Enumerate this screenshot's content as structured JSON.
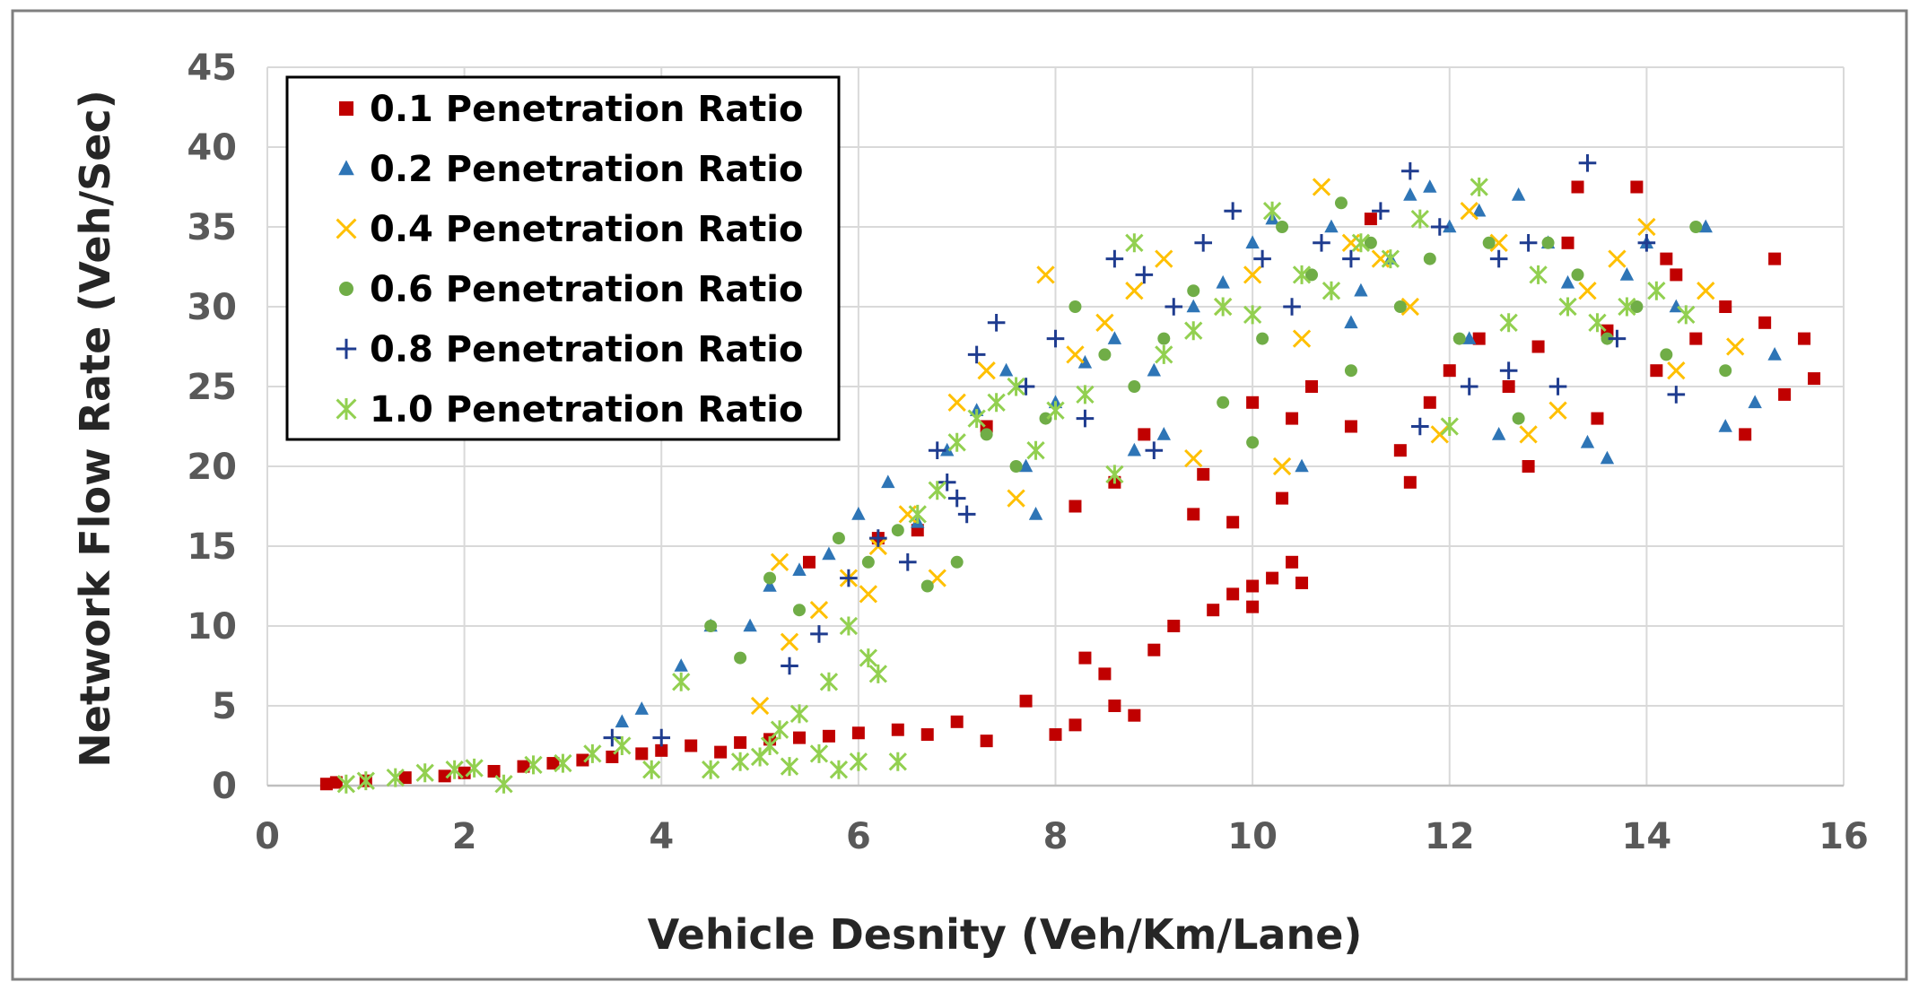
{
  "chart_data": {
    "type": "scatter",
    "title": "",
    "xlabel": "Vehicle Desnity (Veh/Km/Lane)",
    "ylabel": "Network Flow Rate (Veh/Sec)",
    "xlim": [
      0,
      16
    ],
    "ylim": [
      0,
      45
    ],
    "xticks": [
      "0",
      "2",
      "4",
      "6",
      "8",
      "10",
      "12",
      "14",
      "16"
    ],
    "yticks": [
      "0",
      "5",
      "10",
      "15",
      "20",
      "25",
      "30",
      "35",
      "40",
      "45"
    ],
    "grid": true,
    "legend_position": "top-left",
    "series": [
      {
        "name": "0.1 Penetration Ratio",
        "marker": "square",
        "color": "#c00000",
        "points": [
          [
            0.6,
            0.1
          ],
          [
            0.7,
            0.2
          ],
          [
            1.0,
            0.3
          ],
          [
            1.4,
            0.5
          ],
          [
            1.8,
            0.6
          ],
          [
            2.0,
            0.8
          ],
          [
            2.3,
            0.9
          ],
          [
            2.6,
            1.2
          ],
          [
            2.9,
            1.4
          ],
          [
            3.2,
            1.6
          ],
          [
            3.5,
            1.8
          ],
          [
            3.8,
            2.0
          ],
          [
            4.0,
            2.2
          ],
          [
            4.3,
            2.5
          ],
          [
            4.6,
            2.1
          ],
          [
            4.8,
            2.7
          ],
          [
            5.1,
            2.9
          ],
          [
            5.4,
            3.0
          ],
          [
            5.7,
            3.1
          ],
          [
            6.0,
            3.3
          ],
          [
            6.4,
            3.5
          ],
          [
            6.7,
            3.2
          ],
          [
            7.0,
            4.0
          ],
          [
            7.3,
            2.8
          ],
          [
            7.7,
            5.3
          ],
          [
            8.0,
            3.2
          ],
          [
            8.2,
            3.8
          ],
          [
            8.3,
            8.0
          ],
          [
            8.5,
            7.0
          ],
          [
            8.6,
            5.0
          ],
          [
            8.8,
            4.4
          ],
          [
            9.0,
            8.5
          ],
          [
            9.2,
            10.0
          ],
          [
            9.6,
            11.0
          ],
          [
            9.8,
            12.0
          ],
          [
            10.0,
            12.5
          ],
          [
            10.2,
            13.0
          ],
          [
            10.4,
            14.0
          ],
          [
            10.5,
            12.7
          ],
          [
            10.0,
            11.2
          ],
          [
            9.4,
            17.0
          ],
          [
            9.8,
            16.5
          ],
          [
            10.3,
            18.0
          ],
          [
            9.5,
            19.5
          ],
          [
            8.6,
            19.0
          ],
          [
            8.9,
            22.0
          ],
          [
            10.0,
            24.0
          ],
          [
            10.6,
            25.0
          ],
          [
            11.0,
            22.5
          ],
          [
            11.5,
            21.0
          ],
          [
            11.8,
            24.0
          ],
          [
            12.0,
            26.0
          ],
          [
            12.3,
            28.0
          ],
          [
            12.6,
            25.0
          ],
          [
            12.9,
            27.5
          ],
          [
            13.2,
            34.0
          ],
          [
            13.3,
            37.5
          ],
          [
            13.6,
            28.5
          ],
          [
            13.9,
            37.5
          ],
          [
            14.1,
            26.0
          ],
          [
            14.3,
            32.0
          ],
          [
            14.5,
            28.0
          ],
          [
            14.8,
            30.0
          ],
          [
            15.0,
            22.0
          ],
          [
            15.2,
            29.0
          ],
          [
            15.4,
            24.5
          ],
          [
            15.6,
            28.0
          ],
          [
            15.7,
            25.5
          ],
          [
            15.3,
            33.0
          ],
          [
            14.2,
            33.0
          ],
          [
            11.2,
            35.5
          ],
          [
            11.6,
            19.0
          ],
          [
            12.8,
            20.0
          ],
          [
            13.5,
            23.0
          ],
          [
            5.5,
            14.0
          ],
          [
            6.2,
            15.5
          ],
          [
            6.6,
            16.0
          ],
          [
            7.3,
            22.5
          ],
          [
            8.2,
            17.5
          ],
          [
            10.4,
            23.0
          ]
        ]
      },
      {
        "name": "0.2 Penetration Ratio",
        "marker": "triangle",
        "color": "#2e75b6",
        "points": [
          [
            3.6,
            4.0
          ],
          [
            3.8,
            4.8
          ],
          [
            4.2,
            7.5
          ],
          [
            4.5,
            10.0
          ],
          [
            4.9,
            10.0
          ],
          [
            5.1,
            12.5
          ],
          [
            5.4,
            13.5
          ],
          [
            5.7,
            14.5
          ],
          [
            6.0,
            17.0
          ],
          [
            6.3,
            19.0
          ],
          [
            6.6,
            16.5
          ],
          [
            6.9,
            21.0
          ],
          [
            7.2,
            23.5
          ],
          [
            7.5,
            26.0
          ],
          [
            7.8,
            17.0
          ],
          [
            8.0,
            24.0
          ],
          [
            8.3,
            26.5
          ],
          [
            8.6,
            28.0
          ],
          [
            8.8,
            21.0
          ],
          [
            9.1,
            22.0
          ],
          [
            9.4,
            30.0
          ],
          [
            9.7,
            31.5
          ],
          [
            10.0,
            34.0
          ],
          [
            10.2,
            35.5
          ],
          [
            10.5,
            20.0
          ],
          [
            10.8,
            35.0
          ],
          [
            11.1,
            31.0
          ],
          [
            11.4,
            33.0
          ],
          [
            11.6,
            37.0
          ],
          [
            11.8,
            37.5
          ],
          [
            12.0,
            35.0
          ],
          [
            12.3,
            36.0
          ],
          [
            12.5,
            22.0
          ],
          [
            12.7,
            37.0
          ],
          [
            13.0,
            34.0
          ],
          [
            13.2,
            31.5
          ],
          [
            13.4,
            21.5
          ],
          [
            13.6,
            20.5
          ],
          [
            13.8,
            32.0
          ],
          [
            14.0,
            34.0
          ],
          [
            14.3,
            30.0
          ],
          [
            14.6,
            35.0
          ],
          [
            14.8,
            22.5
          ],
          [
            15.1,
            24.0
          ],
          [
            15.3,
            27.0
          ],
          [
            12.2,
            28.0
          ],
          [
            11.0,
            29.0
          ],
          [
            9.0,
            26.0
          ],
          [
            7.7,
            20.0
          ]
        ]
      },
      {
        "name": "0.4 Penetration Ratio",
        "marker": "x",
        "color": "#ffc000",
        "points": [
          [
            5.0,
            5.0
          ],
          [
            5.3,
            9.0
          ],
          [
            5.6,
            11.0
          ],
          [
            5.9,
            13.0
          ],
          [
            6.2,
            15.0
          ],
          [
            6.5,
            17.0
          ],
          [
            6.8,
            13.0
          ],
          [
            7.0,
            24.0
          ],
          [
            7.3,
            26.0
          ],
          [
            7.6,
            18.0
          ],
          [
            7.9,
            32.0
          ],
          [
            8.2,
            27.0
          ],
          [
            8.5,
            29.0
          ],
          [
            8.8,
            31.0
          ],
          [
            9.1,
            33.0
          ],
          [
            9.4,
            20.5
          ],
          [
            9.7,
            30.0
          ],
          [
            10.0,
            32.0
          ],
          [
            10.3,
            20.0
          ],
          [
            10.7,
            37.5
          ],
          [
            11.0,
            34.0
          ],
          [
            11.3,
            33.0
          ],
          [
            11.6,
            30.0
          ],
          [
            11.9,
            22.0
          ],
          [
            12.2,
            36.0
          ],
          [
            12.5,
            34.0
          ],
          [
            12.8,
            22.0
          ],
          [
            13.1,
            23.5
          ],
          [
            13.4,
            31.0
          ],
          [
            13.7,
            33.0
          ],
          [
            14.0,
            35.0
          ],
          [
            14.3,
            26.0
          ],
          [
            14.6,
            31.0
          ],
          [
            14.9,
            27.5
          ],
          [
            5.2,
            14.0
          ],
          [
            6.1,
            12.0
          ],
          [
            10.5,
            28.0
          ]
        ]
      },
      {
        "name": "0.6 Penetration Ratio",
        "marker": "circle",
        "color": "#70ad47",
        "points": [
          [
            4.5,
            10.0
          ],
          [
            4.8,
            8.0
          ],
          [
            5.1,
            13.0
          ],
          [
            5.4,
            11.0
          ],
          [
            5.8,
            15.5
          ],
          [
            6.1,
            14.0
          ],
          [
            6.4,
            16.0
          ],
          [
            6.7,
            12.5
          ],
          [
            7.0,
            14.0
          ],
          [
            7.3,
            22.0
          ],
          [
            7.6,
            20.0
          ],
          [
            7.9,
            23.0
          ],
          [
            8.2,
            30.0
          ],
          [
            8.5,
            27.0
          ],
          [
            8.8,
            25.0
          ],
          [
            9.1,
            28.0
          ],
          [
            9.4,
            31.0
          ],
          [
            9.7,
            24.0
          ],
          [
            10.0,
            21.5
          ],
          [
            10.3,
            35.0
          ],
          [
            10.6,
            32.0
          ],
          [
            10.9,
            36.5
          ],
          [
            11.2,
            34.0
          ],
          [
            11.5,
            30.0
          ],
          [
            11.8,
            33.0
          ],
          [
            12.1,
            28.0
          ],
          [
            12.4,
            34.0
          ],
          [
            12.7,
            23.0
          ],
          [
            13.0,
            34.0
          ],
          [
            13.3,
            32.0
          ],
          [
            13.6,
            28.0
          ],
          [
            13.9,
            30.0
          ],
          [
            14.2,
            27.0
          ],
          [
            14.5,
            35.0
          ],
          [
            14.8,
            26.0
          ],
          [
            10.1,
            28.0
          ],
          [
            11.0,
            26.0
          ]
        ]
      },
      {
        "name": "0.8 Penetration Ratio",
        "marker": "plus",
        "color": "#1f3c8f",
        "points": [
          [
            3.5,
            3.0
          ],
          [
            4.0,
            3.0
          ],
          [
            5.3,
            7.5
          ],
          [
            5.6,
            9.5
          ],
          [
            5.9,
            13.0
          ],
          [
            6.2,
            15.5
          ],
          [
            6.5,
            14.0
          ],
          [
            6.8,
            21.0
          ],
          [
            7.0,
            18.0
          ],
          [
            7.2,
            27.0
          ],
          [
            7.4,
            29.0
          ],
          [
            7.7,
            25.0
          ],
          [
            8.0,
            28.0
          ],
          [
            8.3,
            23.0
          ],
          [
            8.6,
            33.0
          ],
          [
            8.9,
            32.0
          ],
          [
            9.2,
            30.0
          ],
          [
            9.5,
            34.0
          ],
          [
            9.8,
            36.0
          ],
          [
            10.1,
            33.0
          ],
          [
            10.4,
            30.0
          ],
          [
            10.7,
            34.0
          ],
          [
            11.0,
            33.0
          ],
          [
            11.3,
            36.0
          ],
          [
            11.6,
            38.5
          ],
          [
            11.9,
            35.0
          ],
          [
            12.2,
            25.0
          ],
          [
            12.5,
            33.0
          ],
          [
            12.8,
            34.0
          ],
          [
            13.1,
            25.0
          ],
          [
            13.4,
            39.0
          ],
          [
            13.7,
            28.0
          ],
          [
            14.0,
            34.0
          ],
          [
            14.3,
            24.5
          ],
          [
            6.9,
            19.0
          ],
          [
            7.1,
            17.0
          ],
          [
            9.0,
            21.0
          ],
          [
            11.7,
            22.5
          ],
          [
            12.6,
            26.0
          ]
        ]
      },
      {
        "name": "1.0 Penetration Ratio",
        "marker": "asterisk",
        "color": "#92d050",
        "points": [
          [
            0.8,
            0.1
          ],
          [
            1.0,
            0.3
          ],
          [
            1.3,
            0.5
          ],
          [
            1.6,
            0.8
          ],
          [
            1.9,
            1.0
          ],
          [
            2.1,
            1.1
          ],
          [
            2.4,
            0.1
          ],
          [
            2.7,
            1.3
          ],
          [
            3.0,
            1.4
          ],
          [
            3.3,
            2.0
          ],
          [
            3.6,
            2.5
          ],
          [
            3.9,
            1.0
          ],
          [
            4.2,
            6.5
          ],
          [
            4.5,
            1.0
          ],
          [
            4.8,
            1.5
          ],
          [
            5.0,
            1.8
          ],
          [
            5.1,
            2.5
          ],
          [
            5.2,
            3.5
          ],
          [
            5.3,
            1.2
          ],
          [
            5.4,
            4.5
          ],
          [
            5.6,
            2.0
          ],
          [
            5.8,
            1.0
          ],
          [
            6.0,
            1.5
          ],
          [
            6.2,
            7.0
          ],
          [
            6.4,
            1.5
          ],
          [
            6.6,
            17.0
          ],
          [
            6.8,
            18.5
          ],
          [
            7.0,
            21.5
          ],
          [
            7.2,
            23.0
          ],
          [
            7.4,
            24.0
          ],
          [
            7.6,
            25.0
          ],
          [
            7.8,
            21.0
          ],
          [
            8.0,
            23.5
          ],
          [
            8.3,
            24.5
          ],
          [
            8.6,
            19.5
          ],
          [
            8.8,
            34.0
          ],
          [
            9.1,
            27.0
          ],
          [
            9.4,
            28.5
          ],
          [
            9.7,
            30.0
          ],
          [
            10.0,
            29.5
          ],
          [
            10.2,
            36.0
          ],
          [
            10.5,
            32.0
          ],
          [
            10.8,
            31.0
          ],
          [
            11.1,
            34.0
          ],
          [
            11.4,
            33.0
          ],
          [
            11.7,
            35.5
          ],
          [
            12.0,
            22.5
          ],
          [
            12.3,
            37.5
          ],
          [
            12.6,
            29.0
          ],
          [
            12.9,
            32.0
          ],
          [
            13.2,
            30.0
          ],
          [
            13.5,
            29.0
          ],
          [
            13.8,
            30.0
          ],
          [
            14.1,
            31.0
          ],
          [
            14.4,
            29.5
          ],
          [
            5.9,
            10.0
          ],
          [
            6.1,
            8.0
          ],
          [
            5.7,
            6.5
          ]
        ]
      }
    ]
  }
}
